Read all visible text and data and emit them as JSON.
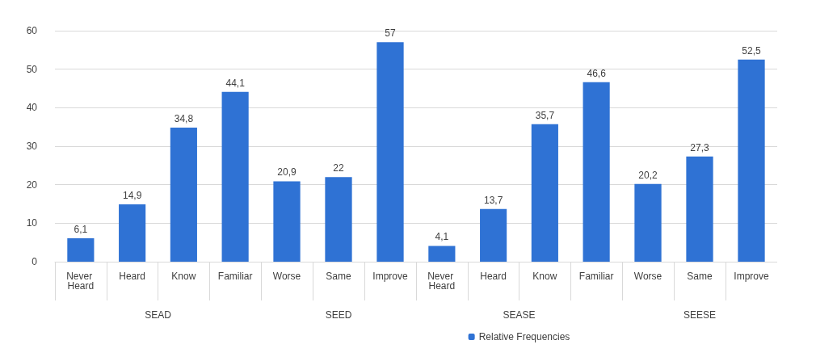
{
  "chart_data": [
    {
      "type": "bar",
      "xlabel": "SEAD",
      "categories": [
        "Never Heard",
        "Heard",
        "Know",
        "Familiar"
      ],
      "ylim": [
        0,
        60
      ],
      "yticks": [
        0,
        10,
        20,
        30,
        40,
        50,
        60
      ],
      "grid": "y",
      "series": [
        {
          "color": "#2f72d4",
          "values": [
            6.1,
            14.9,
            34.8,
            44.1
          ],
          "value_labels": [
            "6,1",
            "14,9",
            "34,8",
            "44,1"
          ]
        }
      ]
    },
    {
      "type": "bar",
      "xlabel": "SEED",
      "categories": [
        "Worse",
        "Same",
        "Improve"
      ],
      "ylim": [
        0,
        60
      ],
      "yticks": [
        0,
        10,
        20,
        30,
        40,
        50,
        60
      ],
      "grid": "y",
      "tick_labels": "x",
      "series": [
        {
          "color": "#2f72d4",
          "values": [
            20.9,
            22,
            57
          ],
          "value_labels": [
            "20,9",
            "22",
            "57"
          ]
        }
      ]
    },
    {
      "type": "bar",
      "xlabel": "SEASE",
      "categories": [
        "Never Heard",
        "Heard",
        "Know",
        "Familiar"
      ],
      "ylim": [
        0,
        60
      ],
      "yticks": [
        0,
        10,
        20,
        30,
        40,
        50,
        60
      ],
      "grid": "y",
      "tick_labels": "x",
      "legend": "bottom",
      "series": [
        {
          "name": "Relative Frequencies",
          "color": "#2f72d4",
          "values": [
            4.1,
            13.7,
            35.7,
            46.6
          ],
          "value_labels": [
            "4,1",
            "13,7",
            "35,7",
            "46,6"
          ]
        }
      ]
    },
    {
      "type": "bar",
      "xlabel": "SEESE",
      "categories": [
        "Worse",
        "Same",
        "Improve"
      ],
      "ylim": [
        0,
        60
      ],
      "yticks": [
        0,
        10,
        20,
        30,
        40,
        50,
        60
      ],
      "grid": "y",
      "tick_labels": "x",
      "series": [
        {
          "color": "#2f72d4",
          "values": [
            20.2,
            27.3,
            52.5
          ],
          "value_labels": [
            "20,2",
            "27,3",
            "52,5"
          ]
        }
      ]
    }
  ]
}
